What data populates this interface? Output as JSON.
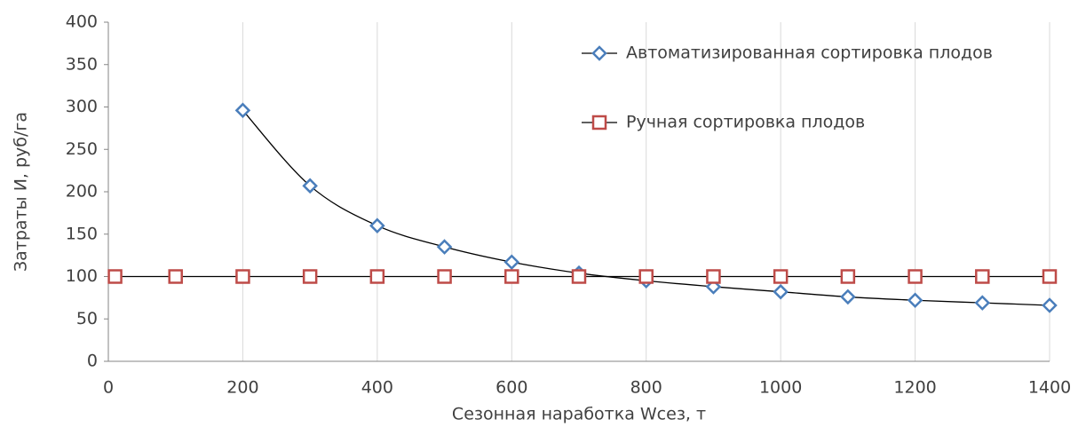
{
  "chart_data": {
    "type": "line",
    "x_label": "Сезонная наработка Wсез, т",
    "y_label": "Затраты И, руб/га",
    "xlim": [
      0,
      1400
    ],
    "xticks": [
      0,
      200,
      400,
      600,
      800,
      1000,
      1200,
      1400
    ],
    "ylim": [
      0,
      400
    ],
    "yticks": [
      0,
      50,
      100,
      150,
      200,
      250,
      300,
      350,
      400
    ],
    "grid": "x",
    "legend": "top-right",
    "series": [
      {
        "name": "Автоматизированная сортировка плодов",
        "color": "#4a7ebb",
        "marker": "diamond",
        "smooth": true,
        "x": [
          200,
          300,
          400,
          500,
          600,
          700,
          800,
          900,
          1000,
          1100,
          1200,
          1300,
          1400
        ],
        "values": [
          296,
          207,
          160,
          135,
          117,
          104,
          95,
          88,
          82,
          76,
          72,
          69,
          66
        ]
      },
      {
        "name": "Ручная сортировка плодов",
        "color": "#be4b48",
        "marker": "square",
        "smooth": false,
        "x": [
          10,
          100,
          200,
          300,
          400,
          500,
          600,
          700,
          800,
          900,
          1000,
          1100,
          1200,
          1300,
          1400
        ],
        "values": [
          100,
          100,
          100,
          100,
          100,
          100,
          100,
          100,
          100,
          100,
          100,
          100,
          100,
          100,
          100
        ]
      }
    ]
  }
}
